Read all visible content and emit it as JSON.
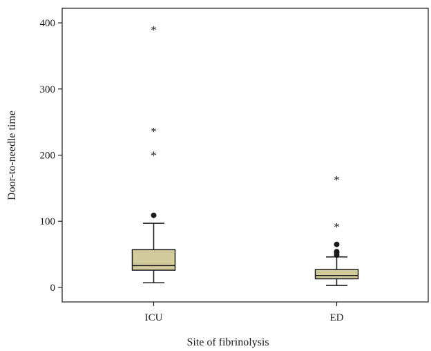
{
  "chart_data": {
    "type": "boxplot",
    "xlabel": "Site of fibrinolysis",
    "ylabel": "Door-to-needle time",
    "ylim": [
      -22,
      422
    ],
    "yticks": [
      0,
      100,
      200,
      300,
      400
    ],
    "categories": [
      "ICU",
      "ED"
    ],
    "box_color": "#d1cb9e",
    "boxes": [
      {
        "category": "ICU",
        "whisker_low": 7,
        "q1": 26,
        "median": 33,
        "q3": 57,
        "whisker_high": 97,
        "outliers": [
          109
        ],
        "extremes": [
          204,
          240,
          394
        ]
      },
      {
        "category": "ED",
        "whisker_low": 3,
        "q1": 13,
        "median": 18,
        "q3": 27,
        "whisker_high": 46,
        "outliers": [
          49,
          53,
          54,
          65
        ],
        "extremes": [
          67,
          96,
          167
        ]
      }
    ]
  }
}
